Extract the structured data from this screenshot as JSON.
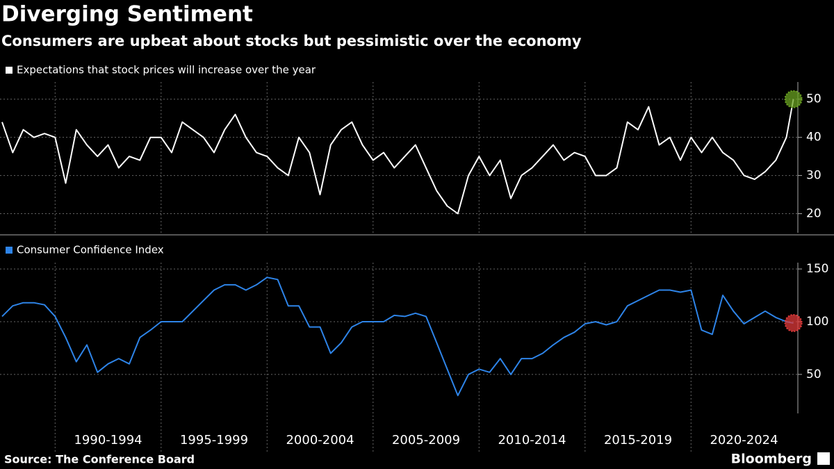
{
  "title": "Diverging Sentiment",
  "subtitle": "Consumers are upbeat about stocks but pessimistic over the economy",
  "source": "Source: The Conference Board",
  "brand": "Bloomberg",
  "chart_data": [
    {
      "type": "line",
      "series": [
        {
          "name": "Expectations that stock prices will increase over the year",
          "color": "#ffffff",
          "marker_color": "#6aa121",
          "values": [
            44,
            36,
            42,
            40,
            41,
            40,
            28,
            42,
            38,
            35,
            38,
            32,
            35,
            34,
            40,
            40,
            36,
            44,
            42,
            40,
            36,
            42,
            46,
            40,
            36,
            35,
            32,
            30,
            40,
            36,
            25,
            38,
            42,
            44,
            38,
            34,
            36,
            32,
            35,
            38,
            32,
            26,
            22,
            20,
            30,
            35,
            30,
            34,
            24,
            30,
            32,
            35,
            38,
            34,
            36,
            35,
            30,
            30,
            32,
            44,
            42,
            48,
            38,
            40,
            34,
            40,
            36,
            40,
            36,
            34,
            30,
            29,
            31,
            34,
            40,
            50
          ]
        }
      ],
      "x": [
        1987.5,
        1988,
        1988.5,
        1989,
        1989.5,
        1990,
        1990.5,
        1991,
        1991.5,
        1992,
        1992.5,
        1993,
        1993.5,
        1994,
        1994.5,
        1995,
        1995.5,
        1996,
        1996.5,
        1997,
        1997.5,
        1998,
        1998.5,
        1999,
        1999.5,
        2000,
        2000.5,
        2001,
        2001.5,
        2002,
        2002.5,
        2003,
        2003.5,
        2004,
        2004.5,
        2005,
        2005.5,
        2006,
        2006.5,
        2007,
        2007.5,
        2008,
        2008.5,
        2009,
        2009.5,
        2010,
        2010.5,
        2011,
        2011.5,
        2012,
        2012.5,
        2013,
        2013.5,
        2014,
        2014.5,
        2015,
        2015.5,
        2016,
        2016.5,
        2017,
        2017.5,
        2018,
        2018.5,
        2019,
        2019.5,
        2020,
        2020.5,
        2021,
        2021.5,
        2022,
        2022.5,
        2023,
        2023.5,
        2024,
        2024.5,
        2024.83
      ],
      "xlim": [
        1987.4,
        2025.04
      ],
      "xgrid": [
        1990,
        1995,
        2000,
        2005,
        2010,
        2015,
        2020
      ],
      "ylim": [
        15,
        54.5
      ],
      "yticks": [
        20,
        30,
        40,
        50
      ],
      "grid": true
    },
    {
      "type": "line",
      "series": [
        {
          "name": "Consumer Confidence Index",
          "color": "#2e84e8",
          "marker_color": "#e03a3a",
          "values": [
            105,
            115,
            118,
            118,
            116,
            105,
            85,
            62,
            78,
            52,
            60,
            65,
            60,
            85,
            92,
            100,
            100,
            100,
            110,
            120,
            130,
            135,
            135,
            130,
            135,
            142,
            140,
            115,
            115,
            95,
            95,
            70,
            80,
            95,
            100,
            100,
            100,
            106,
            105,
            108,
            105,
            80,
            55,
            30,
            50,
            55,
            52,
            65,
            50,
            65,
            65,
            70,
            78,
            85,
            90,
            98,
            100,
            97,
            100,
            115,
            120,
            125,
            130,
            130,
            128,
            130,
            92,
            88,
            125,
            110,
            98,
            104,
            110,
            104,
            100,
            98.7
          ]
        }
      ],
      "x": [
        1987.5,
        1988,
        1988.5,
        1989,
        1989.5,
        1990,
        1990.5,
        1991,
        1991.5,
        1992,
        1992.5,
        1993,
        1993.5,
        1994,
        1994.5,
        1995,
        1995.5,
        1996,
        1996.5,
        1997,
        1997.5,
        1998,
        1998.5,
        1999,
        1999.5,
        2000,
        2000.5,
        2001,
        2001.5,
        2002,
        2002.5,
        2003,
        2003.5,
        2004,
        2004.5,
        2005,
        2005.5,
        2006,
        2006.5,
        2007,
        2007.5,
        2008,
        2008.5,
        2009,
        2009.5,
        2010,
        2010.5,
        2011,
        2011.5,
        2012,
        2012.5,
        2013,
        2013.5,
        2014,
        2014.5,
        2015,
        2015.5,
        2016,
        2016.5,
        2017,
        2017.5,
        2018,
        2018.5,
        2019,
        2019.5,
        2020,
        2020.5,
        2021,
        2021.5,
        2022,
        2022.5,
        2023,
        2023.5,
        2024,
        2024.5,
        2024.83
      ],
      "xlim": [
        1987.4,
        2025.04
      ],
      "xgrid": [
        1990,
        1995,
        2000,
        2005,
        2010,
        2015,
        2020
      ],
      "xticks": [
        {
          "value": 1992.5,
          "label": "1990-1994"
        },
        {
          "value": 1997.5,
          "label": "1995-1999"
        },
        {
          "value": 2002.5,
          "label": "2000-2004"
        },
        {
          "value": 2007.5,
          "label": "2005-2009"
        },
        {
          "value": 2012.5,
          "label": "2010-2014"
        },
        {
          "value": 2017.5,
          "label": "2015-2019"
        },
        {
          "value": 2022.5,
          "label": "2020-2024"
        }
      ],
      "ylim": [
        13,
        156
      ],
      "yticks": [
        50,
        100,
        150
      ],
      "grid": true
    }
  ]
}
